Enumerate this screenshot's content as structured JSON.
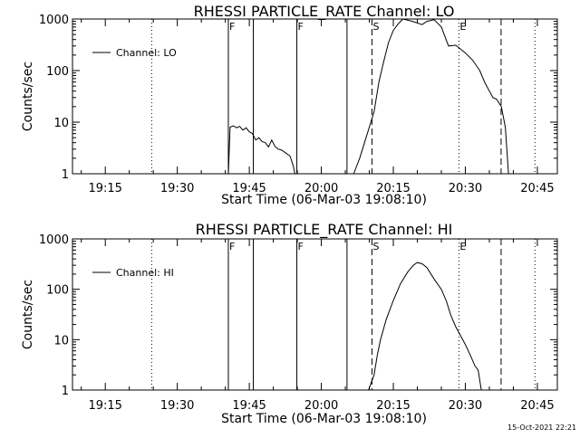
{
  "timestamp": "15-Oct-2021 22:21",
  "chart_data": [
    {
      "type": "line",
      "title": "RHESSI PARTICLE_RATE Channel: LO",
      "xlabel": "Start Time (06-Mar-03 19:08:10)",
      "ylabel": "Counts/sec",
      "y_scale": "log",
      "ylim": [
        1,
        1000
      ],
      "xlim": [
        "19:08:10",
        "20:49:10"
      ],
      "y_ticks": [
        "1",
        "10",
        "100",
        "1000"
      ],
      "x_ticks": [
        "19:15",
        "19:30",
        "19:45",
        "20:00",
        "20:15",
        "20:30",
        "20:45"
      ],
      "legend": {
        "position": "top-left",
        "entries": [
          "Channel: LO"
        ]
      },
      "series": [
        {
          "name": "Channel: LO",
          "color": "#000000",
          "points": [
            [
              "19:40:38",
              1.0
            ],
            [
              "19:41:00",
              8.0
            ],
            [
              "19:41:40",
              8.5
            ],
            [
              "19:42:20",
              7.8
            ],
            [
              "19:43:00",
              8.3
            ],
            [
              "19:43:40",
              7.0
            ],
            [
              "19:44:20",
              7.8
            ],
            [
              "19:45:00",
              6.5
            ],
            [
              "19:45:40",
              6.0
            ],
            [
              "19:46:20",
              4.5
            ],
            [
              "19:47:00",
              5.0
            ],
            [
              "19:47:40",
              4.2
            ],
            [
              "19:48:20",
              4.0
            ],
            [
              "19:49:00",
              3.3
            ],
            [
              "19:49:40",
              4.5
            ],
            [
              "19:50:20",
              3.4
            ],
            [
              "19:51:00",
              3.0
            ],
            [
              "19:51:40",
              2.9
            ],
            [
              "19:52:40",
              2.5
            ],
            [
              "19:53:30",
              2.2
            ],
            [
              "19:54:10",
              1.4
            ],
            [
              "19:54:30",
              1.0
            ],
            [
              "20:06:45",
              1.0
            ],
            [
              "20:08:00",
              2.0
            ],
            [
              "20:09:00",
              4.0
            ],
            [
              "20:10:00",
              8.0
            ],
            [
              "20:11:00",
              16.0
            ],
            [
              "20:12:00",
              60.0
            ],
            [
              "20:13:00",
              150.0
            ],
            [
              "20:14:00",
              350.0
            ],
            [
              "20:15:00",
              600.0
            ],
            [
              "20:16:00",
              800.0
            ],
            [
              "20:17:00",
              1000.0
            ],
            [
              "20:19:00",
              900.0
            ],
            [
              "20:21:00",
              780.0
            ],
            [
              "20:22:00",
              900.0
            ],
            [
              "20:23:30",
              970.0
            ],
            [
              "20:25:00",
              700.0
            ],
            [
              "20:26:30",
              300.0
            ],
            [
              "20:28:00",
              310.0
            ],
            [
              "20:30:00",
              220.0
            ],
            [
              "20:31:30",
              160.0
            ],
            [
              "20:33:00",
              100.0
            ],
            [
              "20:34:00",
              60.0
            ],
            [
              "20:35:00",
              40.0
            ],
            [
              "20:35:45",
              30.0
            ],
            [
              "20:36:30",
              28.0
            ],
            [
              "20:37:30",
              20.0
            ],
            [
              "20:38:20",
              8.0
            ],
            [
              "20:39:00",
              1.0
            ]
          ]
        }
      ],
      "vertical_lines": [
        {
          "time": "19:24:40",
          "style": "dotted",
          "label": ""
        },
        {
          "time": "19:40:38",
          "style": "solid",
          "label": "F"
        },
        {
          "time": "19:45:50",
          "style": "solid",
          "label": ""
        },
        {
          "time": "19:54:54",
          "style": "solid",
          "label": "F"
        },
        {
          "time": "20:05:21",
          "style": "solid",
          "label": ""
        },
        {
          "time": "20:10:33",
          "style": "dashed",
          "label": "S"
        },
        {
          "time": "20:28:40",
          "style": "dotted",
          "label": "E"
        },
        {
          "time": "20:37:27",
          "style": "dashed",
          "label": ""
        },
        {
          "time": "20:44:30",
          "style": "dotted",
          "label": ""
        }
      ]
    },
    {
      "type": "line",
      "title": "RHESSI PARTICLE_RATE Channel: HI",
      "xlabel": "Start Time (06-Mar-03 19:08:10)",
      "ylabel": "Counts/sec",
      "y_scale": "log",
      "ylim": [
        1,
        1000
      ],
      "xlim": [
        "19:08:10",
        "20:49:10"
      ],
      "y_ticks": [
        "1",
        "10",
        "100",
        "1000"
      ],
      "x_ticks": [
        "19:15",
        "19:30",
        "19:45",
        "20:00",
        "20:15",
        "20:30",
        "20:45"
      ],
      "legend": {
        "position": "top-left",
        "entries": [
          "Channel: HI"
        ]
      },
      "series": [
        {
          "name": "Channel: HI",
          "color": "#000000",
          "points": [
            [
              "20:09:50",
              1.0
            ],
            [
              "20:10:30",
              1.5
            ],
            [
              "20:11:00",
              2.0
            ],
            [
              "20:11:40",
              5.0
            ],
            [
              "20:12:20",
              10.0
            ],
            [
              "20:13:30",
              25.0
            ],
            [
              "20:15:00",
              60.0
            ],
            [
              "20:16:30",
              130.0
            ],
            [
              "20:18:00",
              220.0
            ],
            [
              "20:19:10",
              300.0
            ],
            [
              "20:20:00",
              340.0
            ],
            [
              "20:21:00",
              320.0
            ],
            [
              "20:22:00",
              270.0
            ],
            [
              "20:23:30",
              160.0
            ],
            [
              "20:25:00",
              100.0
            ],
            [
              "20:26:00",
              60.0
            ],
            [
              "20:27:00",
              30.0
            ],
            [
              "20:28:00",
              18.0
            ],
            [
              "20:29:00",
              12.0
            ],
            [
              "20:30:00",
              8.0
            ],
            [
              "20:31:00",
              5.0
            ],
            [
              "20:32:00",
              3.0
            ],
            [
              "20:32:40",
              2.5
            ],
            [
              "20:33:20",
              1.0
            ]
          ]
        }
      ],
      "vertical_lines": [
        {
          "time": "19:24:40",
          "style": "dotted",
          "label": ""
        },
        {
          "time": "19:40:38",
          "style": "solid",
          "label": "F"
        },
        {
          "time": "19:45:50",
          "style": "solid",
          "label": ""
        },
        {
          "time": "19:54:54",
          "style": "solid",
          "label": "F"
        },
        {
          "time": "20:05:21",
          "style": "solid",
          "label": ""
        },
        {
          "time": "20:10:33",
          "style": "dashed",
          "label": "S"
        },
        {
          "time": "20:28:40",
          "style": "dotted",
          "label": "E"
        },
        {
          "time": "20:37:27",
          "style": "dashed",
          "label": ""
        },
        {
          "time": "20:44:30",
          "style": "dotted",
          "label": ""
        }
      ]
    }
  ]
}
